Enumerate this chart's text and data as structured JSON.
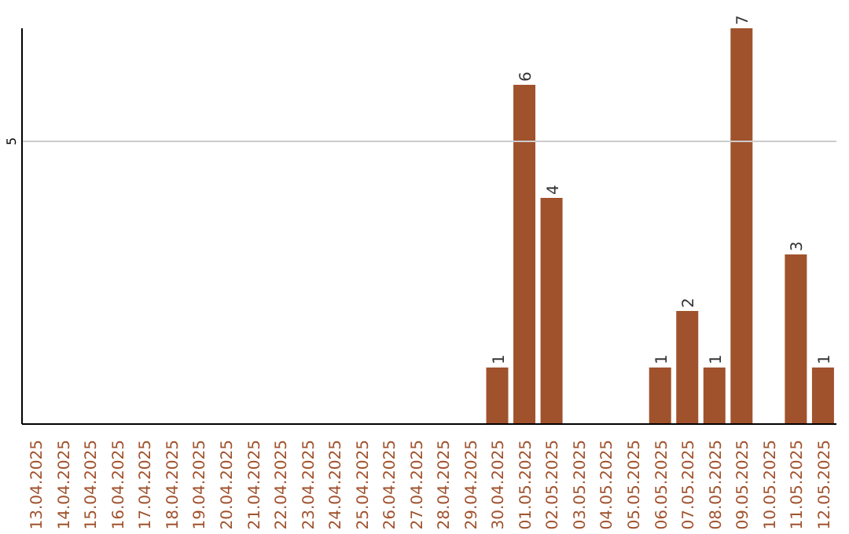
{
  "chart_data": {
    "type": "bar",
    "categories": [
      "13.04.2025",
      "14.04.2025",
      "15.04.2025",
      "16.04.2025",
      "17.04.2025",
      "18.04.2025",
      "19.04.2025",
      "20.04.2025",
      "21.04.2025",
      "22.04.2025",
      "23.04.2025",
      "24.04.2025",
      "25.04.2025",
      "26.04.2025",
      "27.04.2025",
      "28.04.2025",
      "29.04.2025",
      "30.04.2025",
      "01.05.2025",
      "02.05.2025",
      "03.05.2025",
      "04.05.2025",
      "05.05.2025",
      "06.05.2025",
      "07.05.2025",
      "08.05.2025",
      "09.05.2025",
      "10.05.2025",
      "11.05.2025",
      "12.05.2025"
    ],
    "values": [
      null,
      null,
      null,
      null,
      null,
      null,
      null,
      null,
      null,
      null,
      null,
      null,
      null,
      null,
      null,
      null,
      null,
      1,
      6,
      4,
      null,
      null,
      null,
      1,
      2,
      1,
      7,
      null,
      3,
      1
    ],
    "data_labels": true,
    "color": "#a0522d",
    "ref_lines": [
      {
        "axis": "y",
        "value": 5,
        "label": "5",
        "color": "#cccccc"
      }
    ]
  }
}
